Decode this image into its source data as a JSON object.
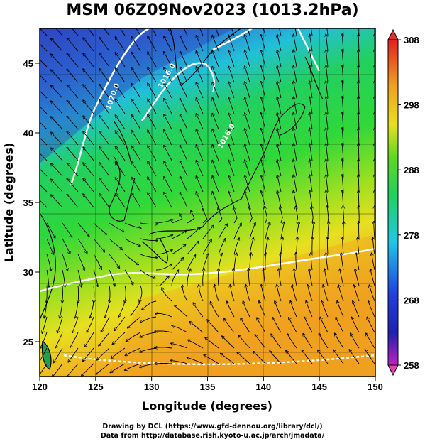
{
  "title": "MSM 06Z09Nov2023 (1013.2hPa)",
  "x_axis": {
    "label": "Longitude (degrees)",
    "range": [
      120,
      150
    ],
    "ticks": [
      "120",
      "125",
      "130",
      "135",
      "140",
      "145",
      "150"
    ]
  },
  "y_axis": {
    "label": "Latitude  (degrees)",
    "range": [
      22.5,
      47.5
    ],
    "ticks": [
      "25",
      "30",
      "35",
      "40",
      "45"
    ]
  },
  "colorbar": {
    "range": [
      258,
      308
    ],
    "tick_labels": [
      "258",
      "268",
      "278",
      "288",
      "298",
      "308"
    ],
    "tick_values": [
      258,
      268,
      278,
      288,
      298,
      308
    ]
  },
  "contour_labels": [
    "1020.0",
    "1016.0",
    "1016.0"
  ],
  "footer": {
    "line1": "Drawing by DCL (https://www.gfd-dennou.org/library/dcl/)",
    "line2": "Data from http://database.rish.kyoto-u.ac.jp/arch/jmadata/"
  },
  "colors": {
    "cold": "#3050c8",
    "cool": "#20a0e8",
    "mid": "#20d050",
    "warm": "#e8e020",
    "hot": "#f0a020"
  }
}
